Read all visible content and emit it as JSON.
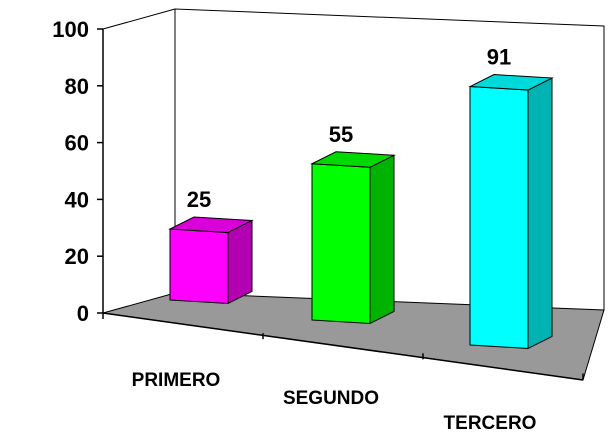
{
  "chart_data": {
    "type": "bar",
    "title": "",
    "xlabel": "",
    "ylabel": "",
    "ylim": [
      0,
      100
    ],
    "yticks": [
      0,
      20,
      40,
      60,
      80,
      100
    ],
    "categories": [
      "PRIMERO",
      "SEGUNDO",
      "TERCERO"
    ],
    "values": [
      25,
      55,
      91
    ],
    "data_labels": [
      "25",
      "55",
      "91"
    ],
    "colors": [
      "#ff00ff",
      "#00ff00",
      "#00ffff"
    ],
    "side_colors": [
      "#b300b3",
      "#00b300",
      "#00b3b3"
    ],
    "top_colors": [
      "#d900d9",
      "#00d900",
      "#00d9d9"
    ],
    "floor_color": "#999999",
    "style": "3d",
    "grid": false,
    "legend": "none"
  }
}
